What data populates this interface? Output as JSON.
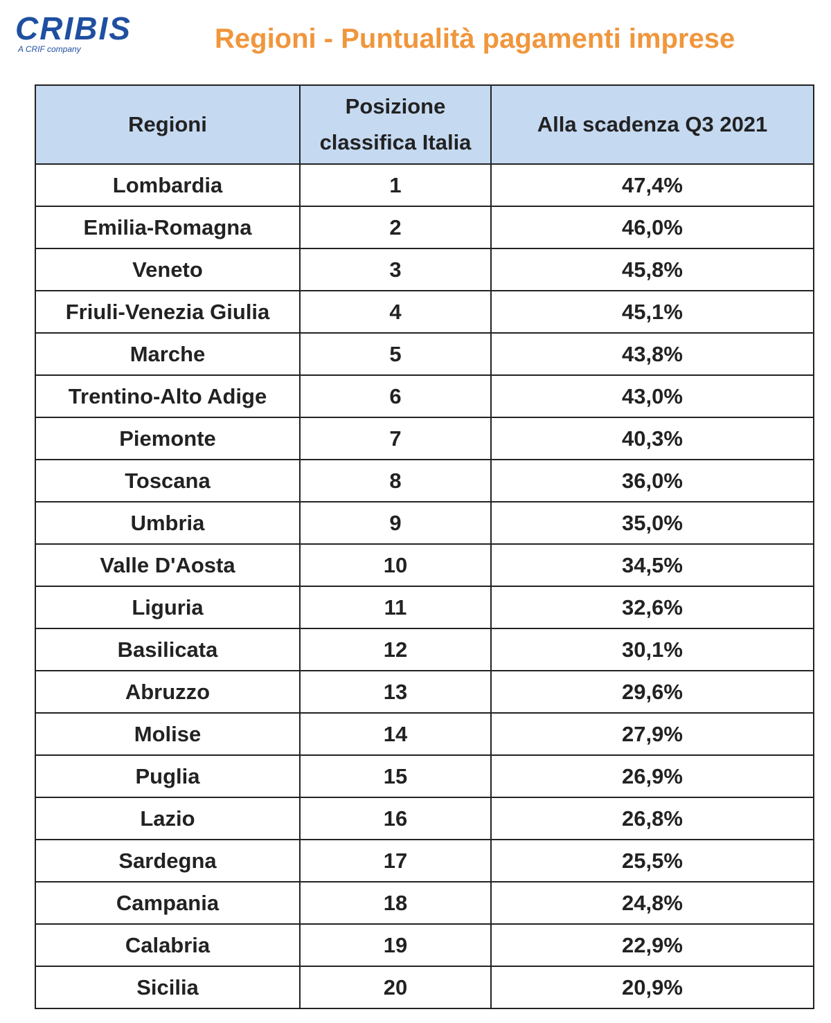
{
  "header": {
    "logo": "CRIBIS",
    "logo_tagline": "A CRIF company",
    "title": "Regioni - Puntualità pagamenti imprese"
  },
  "table": {
    "columns": [
      "Regioni",
      "Posizione classifica Italia",
      "Alla scadenza Q3 2021"
    ],
    "rows": [
      [
        "Lombardia",
        "1",
        "47,4%"
      ],
      [
        "Emilia-Romagna",
        "2",
        "46,0%"
      ],
      [
        "Veneto",
        "3",
        "45,8%"
      ],
      [
        "Friuli-Venezia Giulia",
        "4",
        "45,1%"
      ],
      [
        "Marche",
        "5",
        "43,8%"
      ],
      [
        "Trentino-Alto Adige",
        "6",
        "43,0%"
      ],
      [
        "Piemonte",
        "7",
        "40,3%"
      ],
      [
        "Toscana",
        "8",
        "36,0%"
      ],
      [
        "Umbria",
        "9",
        "35,0%"
      ],
      [
        "Valle D'Aosta",
        "10",
        "34,5%"
      ],
      [
        "Liguria",
        "11",
        "32,6%"
      ],
      [
        "Basilicata",
        "12",
        "30,1%"
      ],
      [
        "Abruzzo",
        "13",
        "29,6%"
      ],
      [
        "Molise",
        "14",
        "27,9%"
      ],
      [
        "Puglia",
        "15",
        "26,9%"
      ],
      [
        "Lazio",
        "16",
        "26,8%"
      ],
      [
        "Sardegna",
        "17",
        "25,5%"
      ],
      [
        "Campania",
        "18",
        "24,8%"
      ],
      [
        "Calabria",
        "19",
        "22,9%"
      ],
      [
        "Sicilia",
        "20",
        "20,9%"
      ]
    ]
  }
}
